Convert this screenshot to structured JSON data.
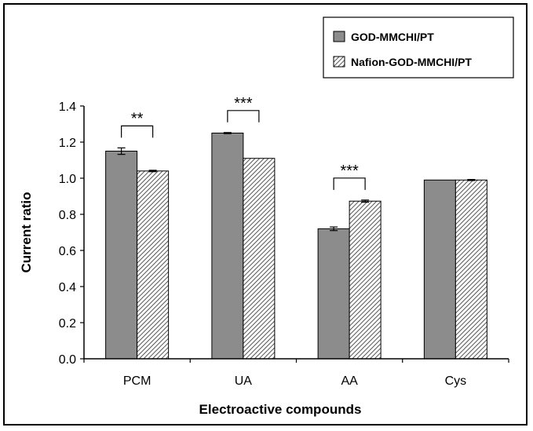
{
  "chart_data": {
    "type": "bar",
    "title": "",
    "xlabel": "Electroactive compounds",
    "ylabel": "Current ratio",
    "ylim": [
      0,
      1.4
    ],
    "ytick_step": 0.2,
    "ytick_labels": [
      "0.0",
      "0.2",
      "0.4",
      "0.6",
      "0.8",
      "1.0",
      "1.2",
      "1.4"
    ],
    "grid": false,
    "legend_position": "top-right",
    "categories": [
      "PCM",
      "UA",
      "AA",
      "Cys"
    ],
    "series": [
      {
        "name": "GOD-MMCHI/PT",
        "values": [
          1.15,
          1.25,
          0.72,
          0.99
        ],
        "errors": [
          0.018,
          0.003,
          0.01,
          0.0
        ],
        "color": "#8c8c8c",
        "pattern": "solid"
      },
      {
        "name": "Nafion-GOD-MMCHI/PT",
        "values": [
          1.04,
          1.11,
          0.873,
          0.99
        ],
        "errors": [
          0.004,
          0.0,
          0.006,
          0.003
        ],
        "color": "#ffffff",
        "pattern": "diagonal-hatch"
      }
    ],
    "significance": [
      {
        "category": "PCM",
        "label": "**"
      },
      {
        "category": "UA",
        "label": "***"
      },
      {
        "category": "AA",
        "label": "***"
      }
    ]
  }
}
